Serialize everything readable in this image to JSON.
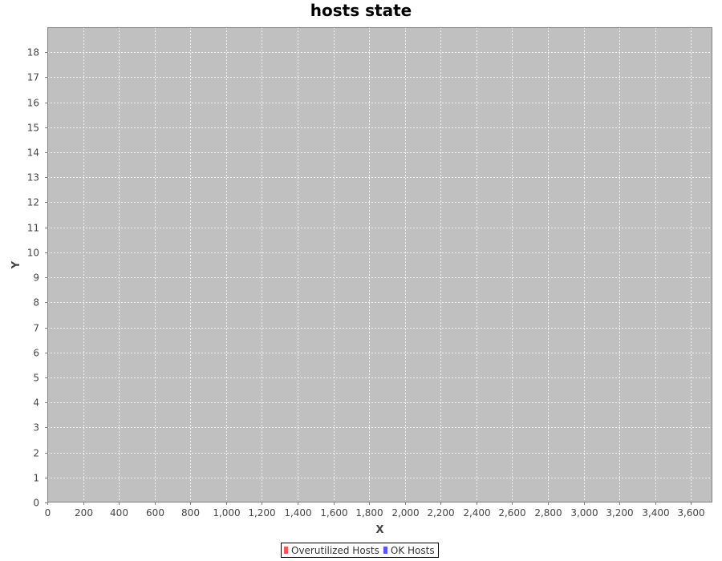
{
  "chart_data": {
    "type": "scatter",
    "title": "hosts state",
    "xlabel": "X",
    "ylabel": "Y",
    "xlim": [
      0,
      3720
    ],
    "ylim": [
      0,
      19
    ],
    "x_ticks": [
      "0",
      "200",
      "400",
      "600",
      "800",
      "1,000",
      "1,200",
      "1,400",
      "1,600",
      "1,800",
      "2,000",
      "2,200",
      "2,400",
      "2,600",
      "2,800",
      "3,000",
      "3,200",
      "3,400",
      "3,600"
    ],
    "y_ticks": [
      "0",
      "1",
      "2",
      "3",
      "4",
      "5",
      "6",
      "7",
      "8",
      "9",
      "10",
      "11",
      "12",
      "13",
      "14",
      "15",
      "16",
      "17",
      "18"
    ],
    "grid": true,
    "legend_position": "bottom",
    "series": [
      {
        "name": "Overutilized Hosts",
        "color": "#ff5555",
        "points": []
      },
      {
        "name": "OK Hosts",
        "color": "#5555ff",
        "points": []
      }
    ],
    "plot_background": "#c0c0c0",
    "gridline_color": "#ffffff"
  }
}
